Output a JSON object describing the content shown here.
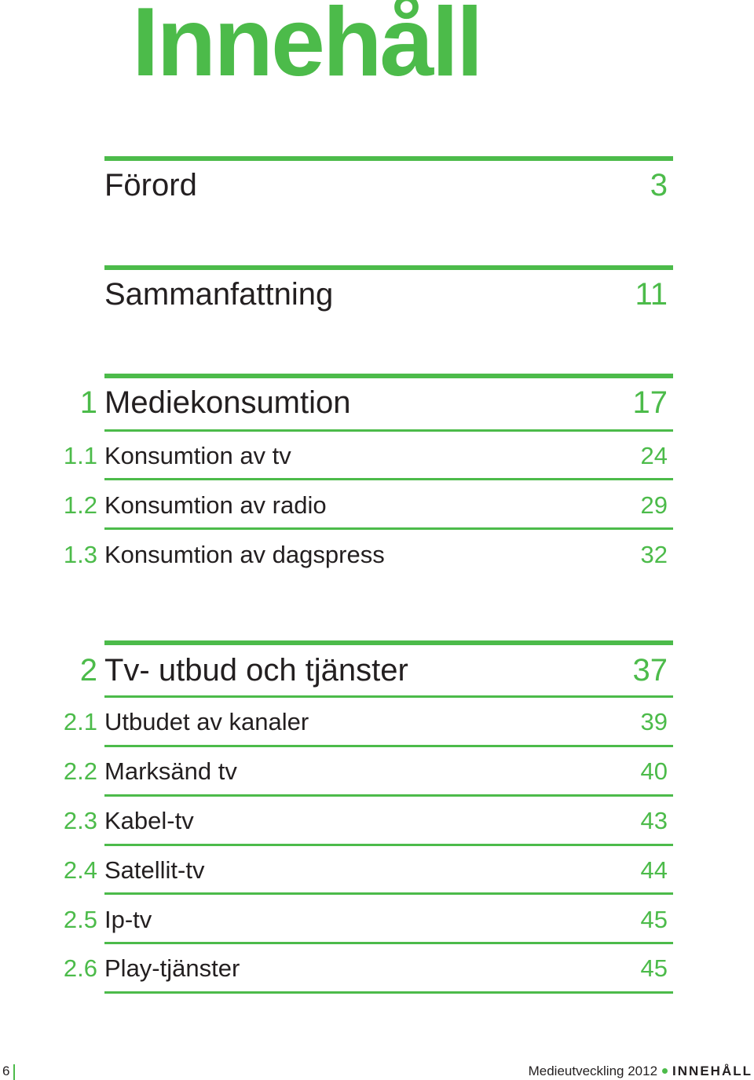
{
  "title": "Innehåll",
  "accent_color": "#4cbb4a",
  "entries": [
    {
      "num": "",
      "label": "Förord",
      "page": "3"
    },
    {
      "num": "",
      "label": "Sammanfattning",
      "page": "11"
    },
    {
      "num": "1",
      "label": "Mediekonsumtion",
      "page": "17"
    },
    {
      "num": "1.1",
      "label": "Konsumtion av tv",
      "page": "24"
    },
    {
      "num": "1.2",
      "label": "Konsumtion av radio",
      "page": "29"
    },
    {
      "num": "1.3",
      "label": "Konsumtion av dagspress",
      "page": "32"
    },
    {
      "num": "2",
      "label": "Tv- utbud och tjänster",
      "page": "37"
    },
    {
      "num": "2.1",
      "label": "Utbudet av kanaler",
      "page": "39"
    },
    {
      "num": "2.2",
      "label": "Marksänd tv",
      "page": "40"
    },
    {
      "num": "2.3",
      "label": "Kabel-tv",
      "page": "43"
    },
    {
      "num": "2.4",
      "label": "Satellit-tv",
      "page": "44"
    },
    {
      "num": "2.5",
      "label": "Ip-tv",
      "page": "45"
    },
    {
      "num": "2.6",
      "label": "Play-tjänster",
      "page": "45"
    }
  ],
  "footer": {
    "page_number": "6",
    "publication": "Medieutveckling 2012",
    "section": "INNEHÅLL"
  }
}
